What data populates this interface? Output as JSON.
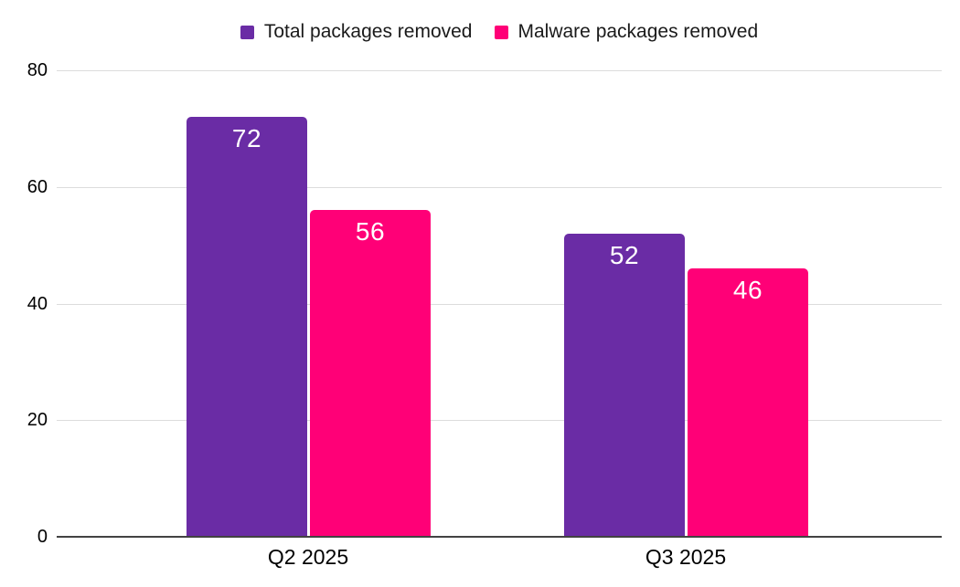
{
  "chart_data": {
    "type": "bar",
    "title": "",
    "xlabel": "",
    "ylabel": "",
    "categories": [
      "Q2 2025",
      "Q3 2025"
    ],
    "series": [
      {
        "name": "Total packages removed",
        "color": "#6A2CA5",
        "values": [
          72,
          52
        ]
      },
      {
        "name": "Malware packages removed",
        "color": "#FF0077",
        "values": [
          56,
          46
        ]
      }
    ],
    "ylim": [
      0,
      80
    ],
    "yticks": [
      0,
      20,
      40,
      60,
      80
    ],
    "grid": true,
    "legend_position": "top",
    "value_labels": true
  },
  "styles": {
    "background": "#FFFFFF",
    "gridline_color": "#DCDCDC",
    "baseline_color": "#424242",
    "axis_text_color": "#000000",
    "legend_text_color": "#1A1A1A",
    "value_label_color": "#FFFFFF"
  }
}
